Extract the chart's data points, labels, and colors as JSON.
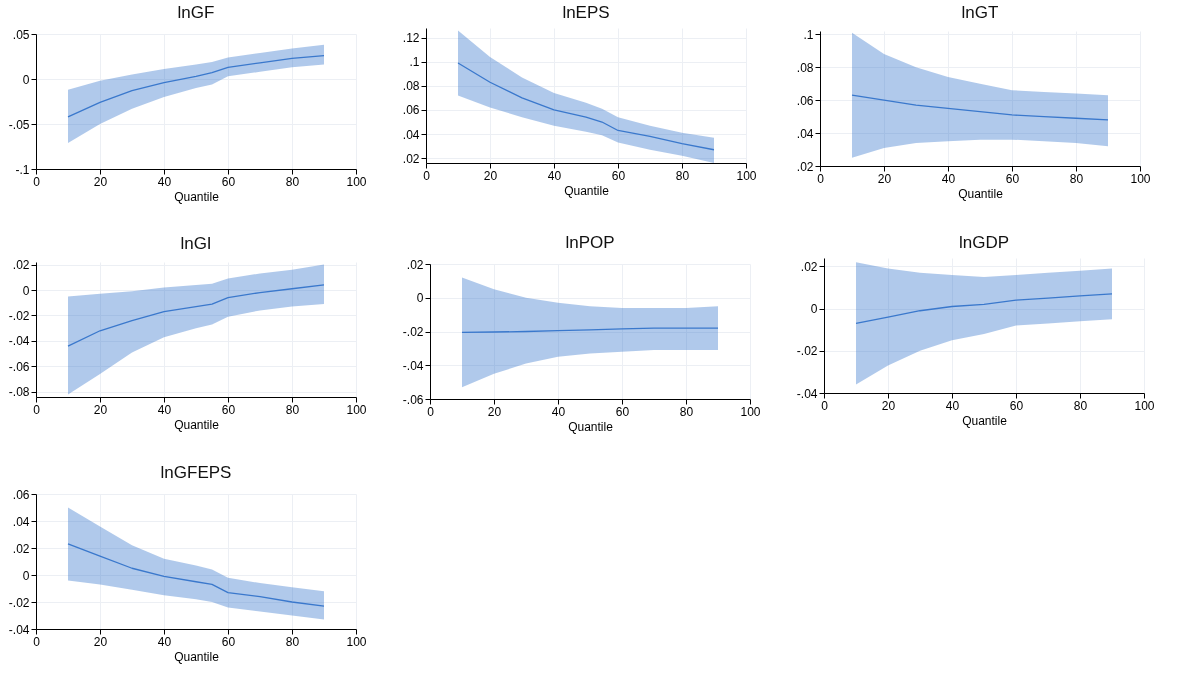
{
  "chart_data": [
    {
      "type": "line",
      "title": "lnGF",
      "xlabel": "Quantile",
      "grid": true,
      "xlim": [
        0,
        100
      ],
      "xticks": [
        0,
        20,
        40,
        60,
        80,
        100
      ],
      "ylim": [
        -0.1,
        0.05
      ],
      "yticks": [
        {
          "value": -0.1,
          "label": "-.1"
        },
        {
          "value": -0.05,
          "label": "-.05"
        },
        {
          "value": 0,
          "label": "0"
        },
        {
          "value": 0.05,
          "label": ".05"
        }
      ],
      "x": [
        10,
        20,
        30,
        40,
        50,
        55,
        60,
        70,
        80,
        90
      ],
      "series": [
        {
          "color": "#3a78cc",
          "values": [
            -0.042,
            -0.026,
            -0.013,
            -0.004,
            0.003,
            0.007,
            0.013,
            0.018,
            0.023,
            0.026
          ],
          "lower": [
            -0.071,
            -0.05,
            -0.033,
            -0.02,
            -0.01,
            -0.006,
            0.003,
            0.008,
            0.013,
            0.016
          ],
          "upper": [
            -0.012,
            -0.002,
            0.005,
            0.011,
            0.016,
            0.019,
            0.024,
            0.029,
            0.034,
            0.038
          ]
        }
      ]
    },
    {
      "type": "line",
      "title": "lnEPS",
      "xlabel": "Quantile",
      "grid": true,
      "xlim": [
        0,
        100
      ],
      "xticks": [
        0,
        20,
        40,
        60,
        80,
        100
      ],
      "ylim": [
        0.016,
        0.128
      ],
      "yticks": [
        {
          "value": 0.02,
          "label": ".02"
        },
        {
          "value": 0.04,
          "label": ".04"
        },
        {
          "value": 0.06,
          "label": ".06"
        },
        {
          "value": 0.08,
          "label": ".08"
        },
        {
          "value": 0.1,
          "label": ".1"
        },
        {
          "value": 0.12,
          "label": ".12"
        }
      ],
      "x": [
        10,
        20,
        30,
        40,
        50,
        55,
        60,
        70,
        80,
        90
      ],
      "series": [
        {
          "color": "#3a78cc",
          "values": [
            0.099,
            0.083,
            0.07,
            0.06,
            0.054,
            0.05,
            0.043,
            0.038,
            0.032,
            0.027
          ],
          "lower": [
            0.072,
            0.062,
            0.054,
            0.047,
            0.042,
            0.039,
            0.033,
            0.027,
            0.022,
            0.016
          ],
          "upper": [
            0.126,
            0.104,
            0.087,
            0.074,
            0.066,
            0.061,
            0.054,
            0.047,
            0.041,
            0.037
          ]
        }
      ]
    },
    {
      "type": "line",
      "title": "lnGT",
      "xlabel": "Quantile",
      "grid": true,
      "xlim": [
        0,
        100
      ],
      "xticks": [
        0,
        20,
        40,
        60,
        80,
        100
      ],
      "ylim": [
        0.02,
        0.102
      ],
      "yticks": [
        {
          "value": 0.02,
          "label": ".02"
        },
        {
          "value": 0.04,
          "label": ".04"
        },
        {
          "value": 0.06,
          "label": ".06"
        },
        {
          "value": 0.08,
          "label": ".08"
        },
        {
          "value": 0.1,
          "label": ".1"
        }
      ],
      "x": [
        10,
        20,
        30,
        40,
        50,
        60,
        70,
        80,
        90
      ],
      "series": [
        {
          "color": "#3a78cc",
          "values": [
            0.063,
            0.06,
            0.057,
            0.055,
            0.053,
            0.051,
            0.05,
            0.049,
            0.048
          ],
          "lower": [
            0.025,
            0.031,
            0.034,
            0.035,
            0.036,
            0.036,
            0.035,
            0.034,
            0.032
          ],
          "upper": [
            0.101,
            0.088,
            0.08,
            0.074,
            0.07,
            0.066,
            0.065,
            0.064,
            0.063
          ]
        }
      ]
    },
    {
      "type": "line",
      "title": "lnGI",
      "xlabel": "Quantile",
      "grid": true,
      "xlim": [
        0,
        100
      ],
      "xticks": [
        0,
        20,
        40,
        60,
        80,
        100
      ],
      "ylim": [
        -0.084,
        0.022
      ],
      "yticks": [
        {
          "value": -0.08,
          "label": "-.08"
        },
        {
          "value": -0.06,
          "label": "-.06"
        },
        {
          "value": -0.04,
          "label": "-.04"
        },
        {
          "value": -0.02,
          "label": "-.02"
        },
        {
          "value": 0,
          "label": "0"
        },
        {
          "value": 0.02,
          "label": ".02"
        }
      ],
      "x": [
        10,
        20,
        30,
        40,
        50,
        55,
        60,
        70,
        80,
        90
      ],
      "series": [
        {
          "color": "#3a78cc",
          "values": [
            -0.044,
            -0.032,
            -0.024,
            -0.017,
            -0.013,
            -0.011,
            -0.006,
            -0.002,
            0.001,
            0.004
          ],
          "lower": [
            -0.082,
            -0.066,
            -0.049,
            -0.037,
            -0.03,
            -0.027,
            -0.021,
            -0.016,
            -0.013,
            -0.011
          ],
          "upper": [
            -0.005,
            -0.003,
            -0.001,
            0.002,
            0.004,
            0.005,
            0.009,
            0.013,
            0.016,
            0.02
          ]
        }
      ]
    },
    {
      "type": "line",
      "title": "lnPOP",
      "xlabel": "Quantile",
      "grid": true,
      "xlim": [
        0,
        100
      ],
      "xticks": [
        0,
        20,
        40,
        60,
        80,
        100
      ],
      "ylim": [
        -0.06,
        0.02
      ],
      "yticks": [
        {
          "value": -0.06,
          "label": "-.06"
        },
        {
          "value": -0.04,
          "label": "-.04"
        },
        {
          "value": -0.02,
          "label": "-.02"
        },
        {
          "value": 0,
          "label": "0"
        },
        {
          "value": 0.02,
          "label": ".02"
        }
      ],
      "x": [
        10,
        20,
        30,
        40,
        50,
        60,
        70,
        80,
        90
      ],
      "series": [
        {
          "color": "#3a78cc",
          "values": [
            -0.0205,
            -0.0203,
            -0.02,
            -0.0195,
            -0.019,
            -0.0185,
            -0.018,
            -0.018,
            -0.018
          ],
          "lower": [
            -0.053,
            -0.045,
            -0.039,
            -0.035,
            -0.033,
            -0.032,
            -0.031,
            -0.031,
            -0.031
          ],
          "upper": [
            0.012,
            0.005,
            0.0,
            -0.003,
            -0.005,
            -0.006,
            -0.006,
            -0.006,
            -0.005
          ]
        }
      ]
    },
    {
      "type": "line",
      "title": "lnGDP",
      "xlabel": "Quantile",
      "grid": true,
      "xlim": [
        0,
        100
      ],
      "xticks": [
        0,
        20,
        40,
        60,
        80,
        100
      ],
      "ylim": [
        -0.04,
        0.024
      ],
      "yticks": [
        {
          "value": -0.04,
          "label": "-.04"
        },
        {
          "value": -0.02,
          "label": "-.02"
        },
        {
          "value": 0,
          "label": "0"
        },
        {
          "value": 0.02,
          "label": ".02"
        }
      ],
      "x": [
        10,
        20,
        30,
        40,
        50,
        60,
        70,
        80,
        90
      ],
      "series": [
        {
          "color": "#3a78cc",
          "values": [
            -0.007,
            -0.004,
            -0.001,
            0.001,
            0.002,
            0.004,
            0.005,
            0.006,
            0.007
          ],
          "lower": [
            -0.036,
            -0.027,
            -0.02,
            -0.015,
            -0.012,
            -0.008,
            -0.007,
            -0.006,
            -0.005
          ],
          "upper": [
            0.022,
            0.019,
            0.017,
            0.016,
            0.015,
            0.016,
            0.017,
            0.018,
            0.019
          ]
        }
      ]
    },
    {
      "type": "line",
      "title": "lnGFEPS",
      "xlabel": "Quantile",
      "grid": true,
      "xlim": [
        0,
        100
      ],
      "xticks": [
        0,
        20,
        40,
        60,
        80,
        100
      ],
      "ylim": [
        -0.04,
        0.06
      ],
      "yticks": [
        {
          "value": -0.04,
          "label": "-.04"
        },
        {
          "value": -0.02,
          "label": "-.02"
        },
        {
          "value": 0,
          "label": "0"
        },
        {
          "value": 0.02,
          "label": ".02"
        },
        {
          "value": 0.04,
          "label": ".04"
        },
        {
          "value": 0.06,
          "label": ".06"
        }
      ],
      "x": [
        10,
        20,
        30,
        40,
        50,
        55,
        60,
        70,
        80,
        90
      ],
      "series": [
        {
          "color": "#3a78cc",
          "values": [
            0.023,
            0.014,
            0.005,
            -0.001,
            -0.005,
            -0.007,
            -0.013,
            -0.016,
            -0.02,
            -0.023
          ],
          "lower": [
            -0.004,
            -0.007,
            -0.011,
            -0.015,
            -0.018,
            -0.02,
            -0.024,
            -0.027,
            -0.03,
            -0.033
          ],
          "upper": [
            0.05,
            0.036,
            0.022,
            0.012,
            0.007,
            0.004,
            -0.002,
            -0.006,
            -0.009,
            -0.012
          ]
        }
      ]
    }
  ]
}
